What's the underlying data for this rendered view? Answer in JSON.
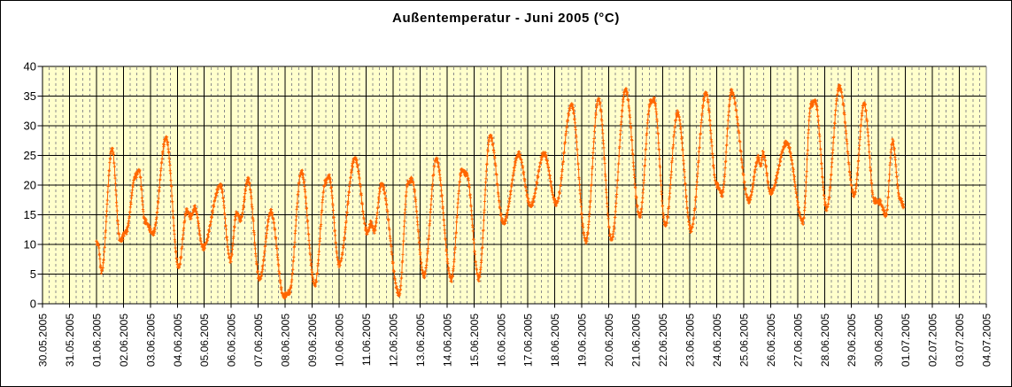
{
  "frame": {
    "background": "#FFFFFF",
    "border_color": "#000000"
  },
  "chart_data": {
    "type": "line",
    "title": "Außentemperatur - Juni 2005 (°C)",
    "xlabel": "",
    "ylabel": "",
    "ylim": [
      0,
      40
    ],
    "ytick_interval": 5,
    "ytick_labels": [
      "40",
      "35",
      "30",
      "25",
      "20",
      "15",
      "10",
      "5",
      "0"
    ],
    "x_labels": [
      "30.05.2005",
      "31.05.2005",
      "01.06.2005",
      "02.06.2005",
      "03.06.2005",
      "04.06.2005",
      "05.06.2005",
      "06.06.2005",
      "07.06.2005",
      "08.06.2005",
      "09.06.2005",
      "10.06.2005",
      "11.06.2005",
      "12.06.2005",
      "13.06.2005",
      "14.06.2005",
      "15.06.2005",
      "16.06.2005",
      "17.06.2005",
      "18.06.2005",
      "19.06.2005",
      "20.06.2005",
      "21.06.2005",
      "22.06.2005",
      "23.06.2005",
      "24.06.2005",
      "25.06.2005",
      "26.06.2005",
      "27.06.2005",
      "28.06.2005",
      "29.06.2005",
      "30.06.2005",
      "01.07.2005",
      "02.07.2005",
      "03.07.2005",
      "04.07.2005"
    ],
    "x_first_data_label_index": 2,
    "plot_background": "#FFFFCC",
    "grid": {
      "major_color": "#000000",
      "minor_color": "#8C8C8C",
      "minor_style": "dashed",
      "minor_per_day": 4,
      "plot_border_right_color": "#808080"
    },
    "legend": "none",
    "series": [
      {
        "name": "Außentemperatur",
        "units": "°C",
        "color": "#FF6600",
        "marker": "plus",
        "start_value": 10.5,
        "end_value": 16.2,
        "daily": [
          {
            "date": "01.06.2005",
            "min": 5.5,
            "max": 26.0
          },
          {
            "date": "02.06.2005",
            "min": 11.0,
            "max": 22.5
          },
          {
            "date": "03.06.2005",
            "min": 12.0,
            "max": 28.0
          },
          {
            "date": "04.06.2005",
            "min": 6.0,
            "max": 16.0
          },
          {
            "date": "05.06.2005",
            "min": 7.5,
            "max": 20.2
          },
          {
            "date": "06.06.2005",
            "min": 7.5,
            "max": 20.8
          },
          {
            "date": "07.06.2005",
            "min": 1.4,
            "max": 15.5
          },
          {
            "date": "08.06.2005",
            "min": 2.0,
            "max": 22.2
          },
          {
            "date": "09.06.2005",
            "min": 3.0,
            "max": 21.4
          },
          {
            "date": "10.06.2005",
            "min": 6.8,
            "max": 24.7
          },
          {
            "date": "11.06.2005",
            "min": 12.0,
            "max": 20.0
          },
          {
            "date": "12.06.2005",
            "min": 1.5,
            "max": 21.0
          },
          {
            "date": "13.06.2005",
            "min": 4.8,
            "max": 24.3
          },
          {
            "date": "14.06.2005",
            "min": 4.0,
            "max": 22.5
          },
          {
            "date": "15.06.2005",
            "min": 4.5,
            "max": 28.4
          },
          {
            "date": "16.06.2005",
            "min": 13.5,
            "max": 25.0
          },
          {
            "date": "17.06.2005",
            "min": 16.5,
            "max": 25.5
          },
          {
            "date": "18.06.2005",
            "min": 17.0,
            "max": 33.4
          },
          {
            "date": "19.06.2005",
            "min": 10.5,
            "max": 34.6
          },
          {
            "date": "20.06.2005",
            "min": 11.0,
            "max": 36.1
          },
          {
            "date": "21.06.2005",
            "min": 14.6,
            "max": 34.2
          },
          {
            "date": "22.06.2005",
            "min": 13.3,
            "max": 32.3
          },
          {
            "date": "23.06.2005",
            "min": 12.5,
            "max": 35.4
          },
          {
            "date": "24.06.2005",
            "min": 18.5,
            "max": 35.9
          },
          {
            "date": "25.06.2005",
            "min": 17.5,
            "max": 25.2
          },
          {
            "date": "26.06.2005",
            "min": 18.5,
            "max": 27.0
          },
          {
            "date": "27.06.2005",
            "min": 14.0,
            "max": 34.3
          },
          {
            "date": "28.06.2005",
            "min": 16.0,
            "max": 36.4
          },
          {
            "date": "29.06.2005",
            "min": 18.3,
            "max": 33.9
          },
          {
            "date": "30.06.2005",
            "min": 14.9,
            "max": 27.2
          }
        ],
        "anchor_points_day_temp": [
          [
            0.0,
            10.5
          ],
          [
            0.06,
            10.2
          ],
          [
            0.19,
            5.5
          ],
          [
            0.58,
            26.0
          ],
          [
            0.88,
            10.5
          ],
          [
            1.1,
            12.0
          ],
          [
            1.45,
            21.5
          ],
          [
            1.58,
            22.5
          ],
          [
            1.8,
            14.0
          ],
          [
            2.1,
            12.0
          ],
          [
            2.58,
            28.0
          ],
          [
            3.05,
            6.0
          ],
          [
            3.35,
            15.5
          ],
          [
            3.5,
            14.5
          ],
          [
            3.65,
            16.0
          ],
          [
            3.95,
            9.5
          ],
          [
            4.6,
            20.2
          ],
          [
            4.97,
            7.5
          ],
          [
            5.2,
            15.3
          ],
          [
            5.35,
            14.2
          ],
          [
            5.62,
            20.8
          ],
          [
            6.05,
            4.0
          ],
          [
            6.47,
            15.5
          ],
          [
            6.95,
            1.4
          ],
          [
            7.15,
            2.0
          ],
          [
            7.6,
            22.2
          ],
          [
            8.1,
            3.0
          ],
          [
            8.5,
            20.5
          ],
          [
            8.62,
            21.4
          ],
          [
            9.0,
            6.8
          ],
          [
            9.59,
            24.7
          ],
          [
            10.05,
            12.0
          ],
          [
            10.18,
            13.5
          ],
          [
            10.3,
            12.2
          ],
          [
            10.57,
            20.0
          ],
          [
            11.23,
            1.5
          ],
          [
            11.55,
            20.5
          ],
          [
            11.7,
            21.0
          ],
          [
            12.15,
            4.8
          ],
          [
            12.6,
            24.3
          ],
          [
            13.16,
            4.0
          ],
          [
            13.55,
            22.5
          ],
          [
            13.72,
            22.0
          ],
          [
            14.18,
            4.5
          ],
          [
            14.6,
            28.4
          ],
          [
            15.1,
            13.5
          ],
          [
            15.66,
            25.0
          ],
          [
            16.1,
            16.5
          ],
          [
            16.6,
            25.5
          ],
          [
            17.05,
            17.0
          ],
          [
            17.62,
            33.4
          ],
          [
            18.15,
            10.5
          ],
          [
            18.62,
            34.6
          ],
          [
            19.1,
            11.0
          ],
          [
            19.62,
            36.1
          ],
          [
            20.15,
            14.6
          ],
          [
            20.55,
            33.8
          ],
          [
            20.68,
            34.2
          ],
          [
            21.1,
            13.3
          ],
          [
            21.55,
            32.3
          ],
          [
            22.05,
            12.5
          ],
          [
            22.6,
            35.4
          ],
          [
            23.0,
            20.0
          ],
          [
            23.2,
            18.5
          ],
          [
            23.55,
            35.9
          ],
          [
            24.2,
            17.5
          ],
          [
            24.55,
            24.5
          ],
          [
            24.63,
            23.2
          ],
          [
            24.72,
            25.2
          ],
          [
            25.0,
            18.5
          ],
          [
            25.6,
            27.0
          ],
          [
            26.2,
            14.0
          ],
          [
            26.5,
            33.8
          ],
          [
            26.65,
            34.3
          ],
          [
            27.08,
            16.0
          ],
          [
            27.55,
            36.4
          ],
          [
            28.1,
            18.3
          ],
          [
            28.47,
            33.9
          ],
          [
            28.85,
            17.5
          ],
          [
            29.05,
            17.2
          ],
          [
            29.28,
            14.9
          ],
          [
            29.52,
            27.2
          ],
          [
            29.8,
            17.5
          ],
          [
            29.94,
            16.2
          ]
        ]
      }
    ]
  }
}
